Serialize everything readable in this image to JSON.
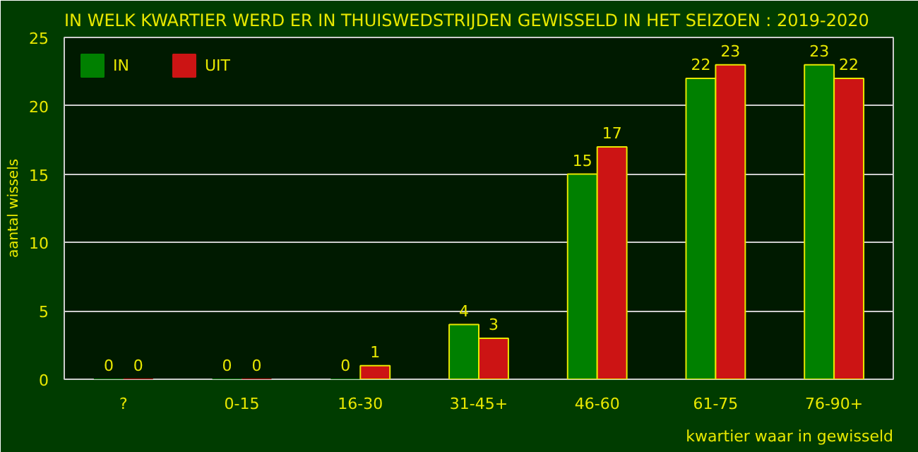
{
  "chart_data": {
    "type": "bar",
    "title": "IN WELK KWARTIER WERD ER IN THUISWEDSTRIJDEN GEWISSELD IN HET SEIZOEN : 2019-2020",
    "xlabel": "kwartier waar in gewisseld",
    "ylabel": "aantal wissels",
    "categories": [
      "?",
      "0-15",
      "16-30",
      "31-45+",
      "46-60",
      "61-75",
      "76-90+"
    ],
    "series": [
      {
        "name": "IN",
        "color": "#008000",
        "values": [
          0,
          0,
          0,
          4,
          15,
          22,
          23
        ]
      },
      {
        "name": "UIT",
        "color": "#cc1414",
        "values": [
          0,
          0,
          1,
          3,
          17,
          23,
          22
        ]
      }
    ],
    "ylim": [
      0,
      25
    ],
    "yticks": [
      0,
      5,
      10,
      15,
      20,
      25
    ],
    "grid": "y",
    "legend": "top left",
    "data_labels": true
  }
}
